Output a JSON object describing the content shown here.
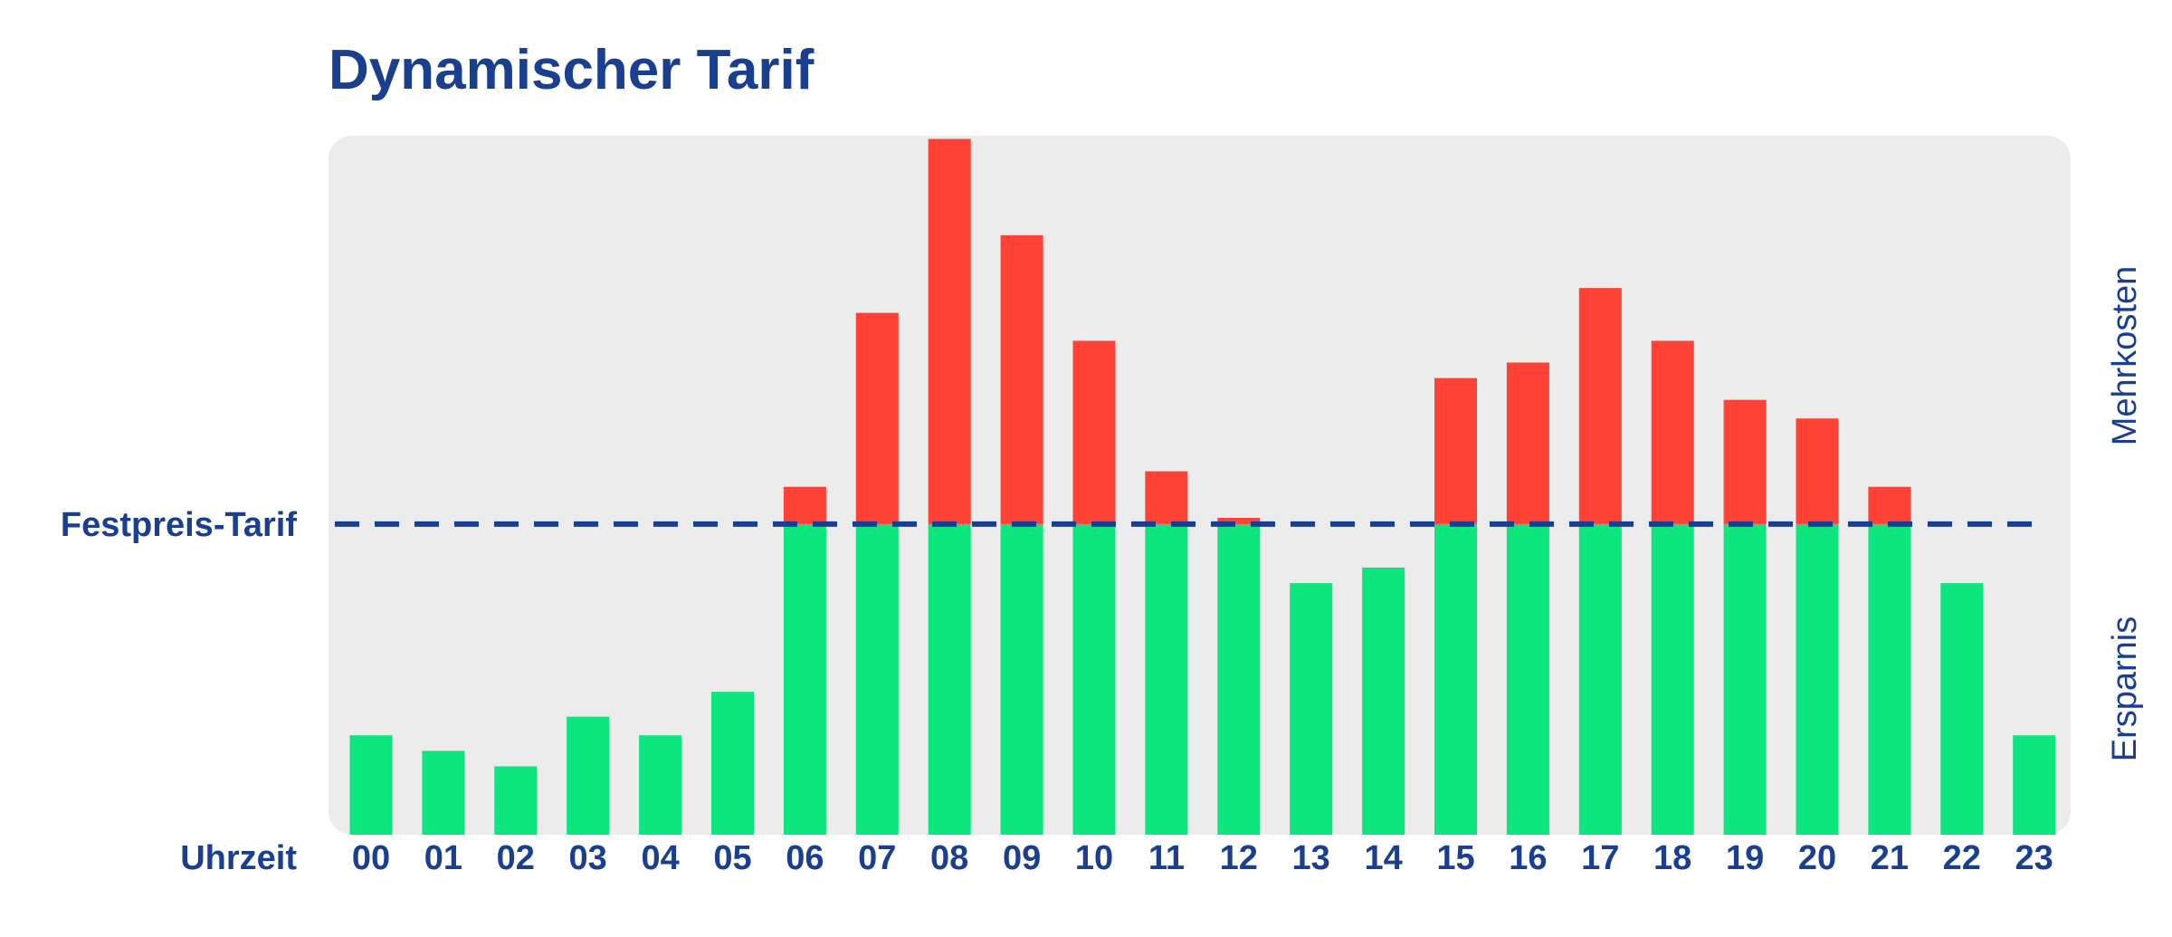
{
  "chart_data": {
    "type": "bar",
    "title": "Dynamischer Tarif",
    "xlabel": "Uhrzeit",
    "reference_line": {
      "label": "Festpreis-Tarif",
      "value": 100,
      "style": "dashed"
    },
    "upper_side_label": "Mehrkosten",
    "lower_side_label": "Ersparnis",
    "categories": [
      "00",
      "01",
      "02",
      "03",
      "04",
      "05",
      "06",
      "07",
      "08",
      "09",
      "10",
      "11",
      "12",
      "13",
      "14",
      "15",
      "16",
      "17",
      "18",
      "19",
      "20",
      "21",
      "22",
      "23"
    ],
    "values": [
      32,
      27,
      22,
      38,
      32,
      46,
      112,
      168,
      224,
      193,
      159,
      117,
      102,
      81,
      86,
      147,
      152,
      176,
      159,
      140,
      134,
      112,
      81,
      32
    ],
    "ylim": [
      0,
      225
    ],
    "grid": false,
    "colors": {
      "below_reference": "#0de57f",
      "above_reference": "#ff4136",
      "reference_line": "#1a3f8f",
      "text": "#1a3f8f",
      "plot_background": "#ececec"
    }
  }
}
